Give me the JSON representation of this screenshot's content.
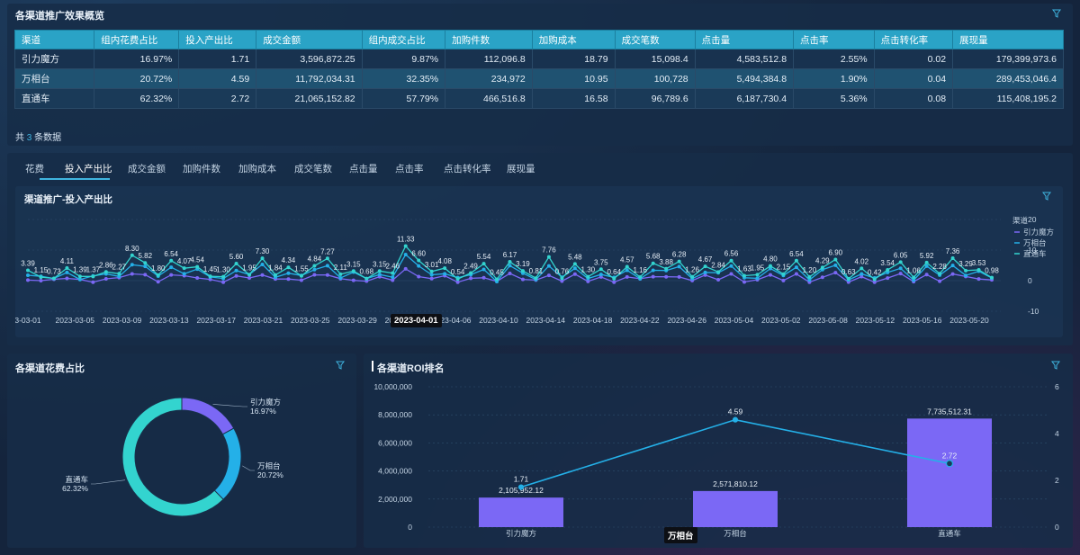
{
  "overview": {
    "title": "各渠道推广效果概览",
    "columns": [
      "渠道",
      "组内花费占比",
      "投入产出比",
      "成交金额",
      "组内成交占比",
      "加购件数",
      "加购成本",
      "成交笔数",
      "点击量",
      "点击率",
      "点击转化率",
      "展现量"
    ],
    "rows": [
      [
        "引力魔方",
        "16.97%",
        "1.71",
        "3,596,872.25",
        "9.87%",
        "112,096.8",
        "18.79",
        "15,098.4",
        "4,583,512.8",
        "2.55%",
        "0.02",
        "179,399,973.6"
      ],
      [
        "万相台",
        "20.72%",
        "4.59",
        "11,792,034.31",
        "32.35%",
        "234,972",
        "10.95",
        "100,728",
        "5,494,384.8",
        "1.90%",
        "0.04",
        "289,453,046.4"
      ],
      [
        "直通车",
        "62.32%",
        "2.72",
        "21,065,152.82",
        "57.79%",
        "466,516.8",
        "16.58",
        "96,789.6",
        "6,187,730.4",
        "5.36%",
        "0.08",
        "115,408,195.2"
      ]
    ],
    "total_prefix": "共",
    "total_count": "3",
    "total_suffix": "条数据"
  },
  "tabs": [
    "花费",
    "投入产出比",
    "成交金额",
    "加购件数",
    "加购成本",
    "成交笔数",
    "点击量",
    "点击率",
    "点击转化率",
    "展现量"
  ],
  "trend": {
    "title": "渠道推广-投入产出比",
    "legend_title": "渠道",
    "legend": [
      "引力魔方",
      "万相台",
      "直通车"
    ],
    "x_labels": [
      "3-03-01",
      "2023-03-05",
      "2023-03-09",
      "2023-03-13",
      "2023-03-17",
      "2023-03-21",
      "2023-03-25",
      "2023-03-29",
      "2023-04-02",
      "2023-04-06",
      "2023-04-10",
      "2023-04-14",
      "2023-04-18",
      "2023-04-22",
      "2023-04-26",
      "2023-05-04",
      "2023-05-02",
      "2023-05-08",
      "2023-05-12",
      "2023-05-16",
      "2023-05-20"
    ],
    "tooltip_date": "2023-04-01",
    "y_ticks": [
      "20",
      "10",
      "0",
      "-10"
    ],
    "point_labels": [
      "3.39",
      "1.15",
      "0.73",
      "4.11",
      "1.39",
      "1.37",
      "2.86",
      "2.27",
      "8.30",
      "5.82",
      "1.80",
      "6.54",
      "4.07",
      "4.54",
      "1.45",
      "1.30",
      "5.60",
      "1.95",
      "7.30",
      "1.84",
      "4.34",
      "1.55",
      "4.84",
      "7.27",
      "2.11",
      "3.15",
      "0.68",
      "3.15",
      "2.46",
      "11.33",
      "6.60",
      "3.01",
      "4.08",
      "0.54",
      "2.49",
      "5.54",
      "0.45",
      "6.17",
      "3.19",
      "0.81",
      "7.76",
      "0.76",
      "5.48",
      "1.30",
      "3.75",
      "0.64",
      "4.57",
      "1.16",
      "5.68",
      "3.88",
      "6.28",
      "1.26",
      "4.67",
      "2.84",
      "6.56",
      "1.63",
      "1.95",
      "4.80",
      "2.15",
      "6.54",
      "1.20",
      "4.29",
      "6.90",
      "0.63",
      "4.02",
      "0.42",
      "3.54",
      "6.05",
      "1.06",
      "5.92",
      "2.28",
      "7.36",
      "3.29",
      "3.53",
      "0.98"
    ]
  },
  "pie": {
    "title": "各渠道花费占比",
    "slices": [
      {
        "name": "引力魔方",
        "pct": "16.97%",
        "value": 16.97,
        "color": "#7b68f5"
      },
      {
        "name": "万相台",
        "pct": "20.72%",
        "value": 20.72,
        "color": "#24b0e8"
      },
      {
        "name": "直通车",
        "pct": "62.32%",
        "value": 62.32,
        "color": "#33d4cf"
      }
    ]
  },
  "roi": {
    "title": "各渠道ROI排名",
    "y_left_ticks": [
      "10,000,000",
      "8,000,000",
      "6,000,000",
      "4,000,000",
      "2,000,000",
      "0"
    ],
    "y_right_ticks": [
      "6",
      "4",
      "2",
      "0"
    ],
    "categories": [
      "引力魔方",
      "万相台",
      "直通车"
    ],
    "bar_values": [
      2105952.12,
      2571810.12,
      7735512.31
    ],
    "bar_labels": [
      "2,105,952.12",
      "2,571,810.12",
      "7,735,512.31"
    ],
    "line_values": [
      1.71,
      4.59,
      2.72
    ],
    "line_labels": [
      "1.71",
      "4.59",
      "2.72"
    ],
    "hover_label": "万相台"
  },
  "colors": {
    "accent": "#3fb5e0",
    "bar": "#7b68f5",
    "line": "#24b0e8",
    "teal": "#33d4cf"
  }
}
